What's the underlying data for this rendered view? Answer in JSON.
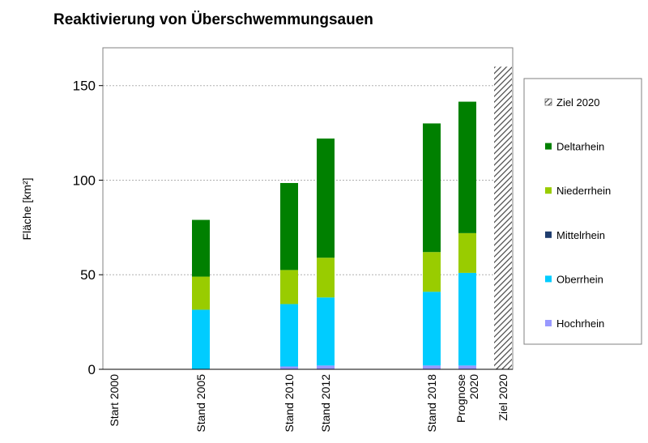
{
  "chart_data": {
    "type": "bar",
    "stacked": true,
    "title": "Reaktivierung von Überschwemmungsauen",
    "ylabel": "Fläche [km²]",
    "xlabel": "",
    "ylim": [
      0,
      170
    ],
    "yticks": [
      0,
      50,
      100,
      150
    ],
    "grid": true,
    "legend_position": "right",
    "categories": [
      "Start 2000",
      "Stand 2005",
      "Stand 2010",
      "Stand 2012",
      "Stand 2018",
      "Prognose 2020",
      "Ziel 2020"
    ],
    "category_lines": [
      [
        "Start 2000"
      ],
      [
        "Stand 2005"
      ],
      [
        "Stand 2010"
      ],
      [
        "Stand 2012"
      ],
      [
        "Stand 2018"
      ],
      [
        "Prognose",
        "2020"
      ],
      [
        "Ziel 2020"
      ]
    ],
    "series": [
      {
        "name": "Hochrhein",
        "color": "#9999ff",
        "values": [
          0,
          0,
          1.5,
          2,
          2,
          2,
          0
        ]
      },
      {
        "name": "Oberrhein",
        "color": "#00ccff",
        "values": [
          0,
          31.5,
          33,
          36,
          39,
          49,
          0
        ]
      },
      {
        "name": "Mittelrhein",
        "color": "#1f3d6e",
        "values": [
          0,
          0,
          0,
          0,
          0,
          0,
          0
        ]
      },
      {
        "name": "Niederrhein",
        "color": "#99cc00",
        "values": [
          0,
          17.5,
          18,
          21,
          21,
          21,
          0
        ]
      },
      {
        "name": "Deltarhein",
        "color": "#008000",
        "values": [
          0,
          30,
          46,
          63,
          68,
          69.5,
          0
        ]
      },
      {
        "name": "Ziel 2020",
        "color": "#555555",
        "pattern": "hatch",
        "values": [
          0,
          0,
          0,
          0,
          0,
          0,
          160
        ]
      }
    ],
    "legend_order": [
      "Ziel 2020",
      "Deltarhein",
      "Niederrhein",
      "Mittelrhein",
      "Oberrhein",
      "Hochrhein"
    ]
  }
}
